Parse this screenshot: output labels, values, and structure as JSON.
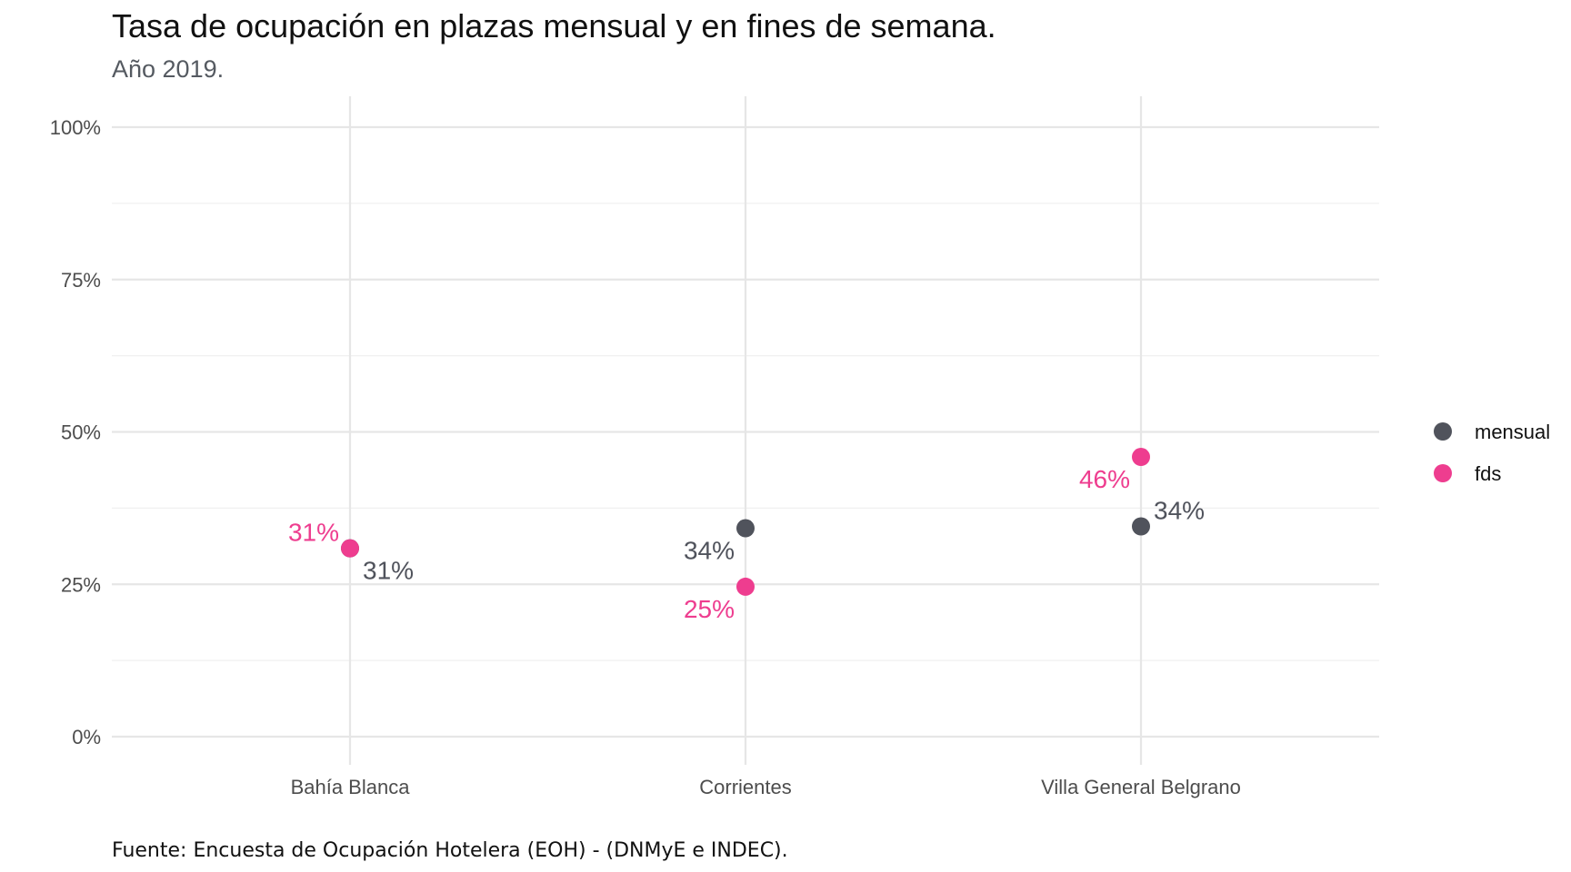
{
  "chart_data": {
    "type": "scatter",
    "title": "Tasa de ocupación en plazas mensual y en fines de semana.",
    "subtitle": "Año 2019.",
    "caption": "Fuente: Encuesta de Ocupación Hotelera (EOH) - (DNMyE e INDEC).",
    "categories": [
      "Bahía Blanca",
      "Corrientes",
      "Villa General Belgrano"
    ],
    "ylim": [
      0,
      1
    ],
    "yticks": [
      0,
      0.25,
      0.5,
      0.75,
      1
    ],
    "ytick_labels": [
      "0%",
      "25%",
      "50%",
      "75%",
      "100%"
    ],
    "grid": true,
    "legend_position": "right",
    "series": [
      {
        "name": "mensual",
        "color": "#50535c",
        "values": [
          0.309,
          0.342,
          0.345
        ],
        "labels": [
          "31%",
          "34%",
          "34%"
        ],
        "label_side": [
          "right-below",
          "left-below",
          "right-above"
        ]
      },
      {
        "name": "fds",
        "color": "#ee3d8f",
        "values": [
          0.309,
          0.246,
          0.459
        ],
        "labels": [
          "31%",
          "25%",
          "46%"
        ],
        "label_side": [
          "left-above",
          "left-below",
          "left-below"
        ]
      }
    ]
  }
}
